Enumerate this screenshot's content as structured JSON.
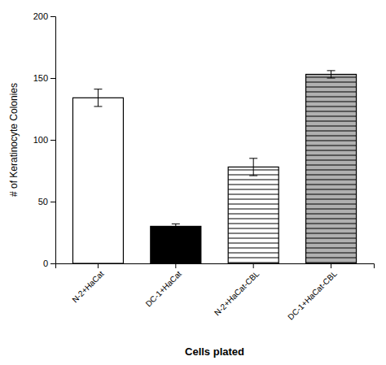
{
  "chart_data": {
    "type": "bar",
    "categories": [
      "N-2+HaCat",
      "DC-1+HaCat",
      "N-2+HaCat-CBL",
      "DC-1+HaCat-CBL"
    ],
    "values": [
      134,
      30,
      78,
      153
    ],
    "errors": [
      7,
      2,
      7,
      3
    ],
    "colors": [
      "white",
      "black",
      "white",
      "#b0b0b0"
    ],
    "xlabel": "Cells plated",
    "ylabel": "# of Keratinocyte Colonies",
    "ylim": [
      0,
      200
    ],
    "yticks": [
      0,
      50,
      100,
      150,
      200
    ],
    "grid": false
  }
}
